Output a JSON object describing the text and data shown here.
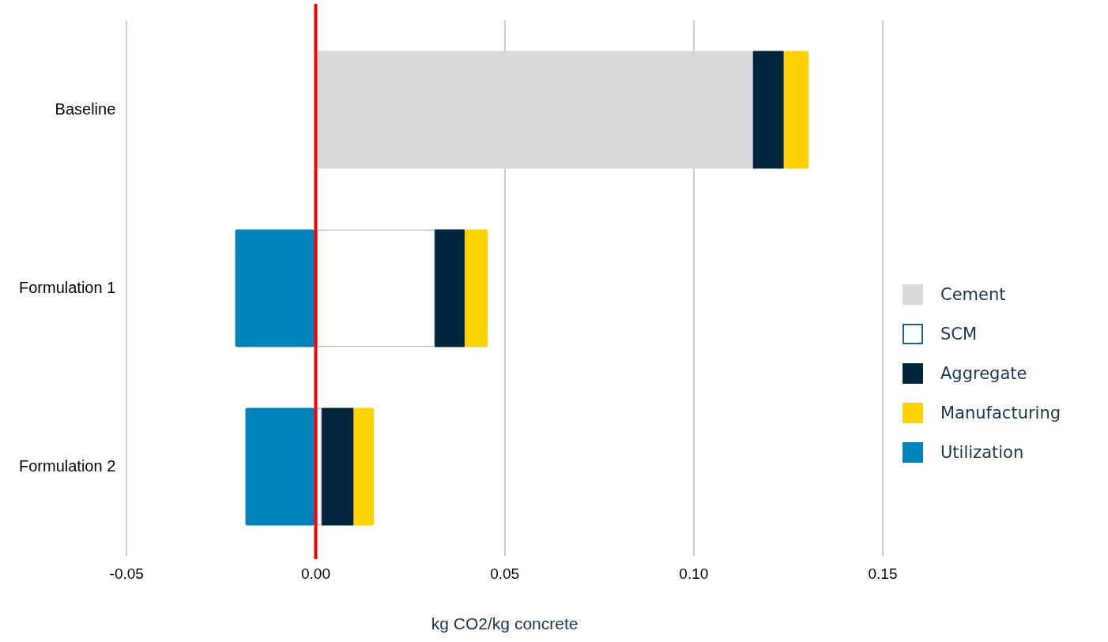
{
  "chart_data": {
    "type": "bar",
    "orientation": "horizontal",
    "stacked": true,
    "categories": [
      "Baseline",
      "Formulation 1",
      "Formulation 2"
    ],
    "xlabel": "kg CO2/kg concrete",
    "xlim": [
      -0.05,
      0.15
    ],
    "xticks": [
      {
        "value": -0.05,
        "label": "-0.05"
      },
      {
        "value": 0,
        "label": "0.00"
      },
      {
        "value": 0.05,
        "label": "0.05"
      },
      {
        "value": 0.1,
        "label": "0.10"
      },
      {
        "value": 0.15,
        "label": "0.15"
      }
    ],
    "grid": "x",
    "legend": "right",
    "ref_lines": [
      {
        "axis": "x",
        "value": 0,
        "color": "#ff0000"
      }
    ],
    "series": [
      {
        "name": "Cement",
        "color": "#d9d9d9",
        "values": [
          0.1156,
          0,
          0
        ]
      },
      {
        "name": "SCM",
        "color": "#ffffff",
        "values": [
          0,
          0.0315,
          0.0016
        ]
      },
      {
        "name": "Aggregate",
        "color": "#00263e",
        "values": [
          0.0082,
          0.0079,
          0.0084
        ]
      },
      {
        "name": "Manufacturing",
        "color": "#ffd100",
        "values": [
          0.0066,
          0.0061,
          0.0054
        ]
      },
      {
        "name": "Utilization",
        "color": "#0082ba",
        "values": [
          0,
          -0.0213,
          -0.0186
        ]
      }
    ]
  }
}
